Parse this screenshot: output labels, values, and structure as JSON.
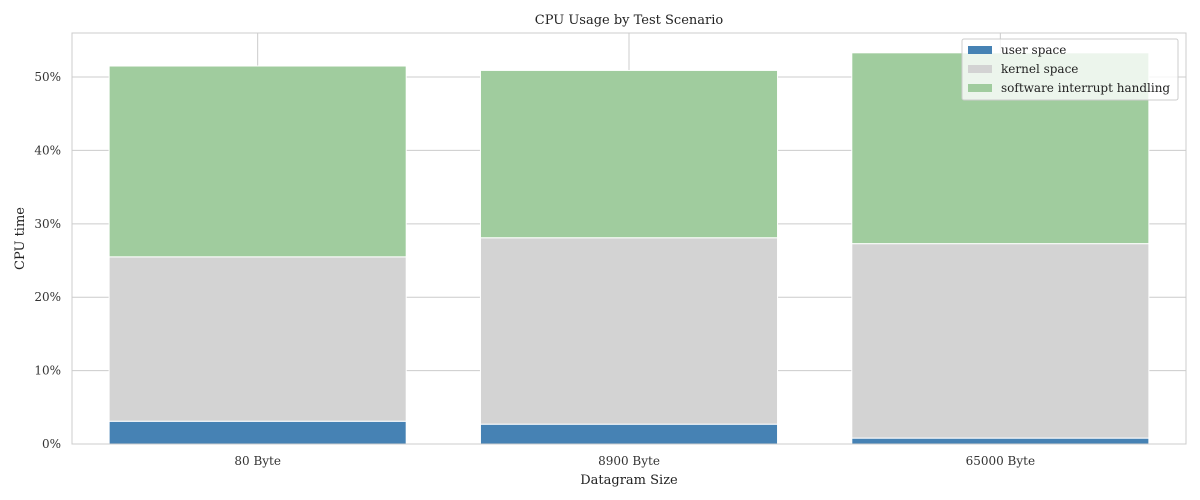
{
  "chart_data": {
    "type": "bar",
    "stacked": true,
    "title": "CPU Usage by Test Scenario",
    "xlabel": "Datagram Size",
    "ylabel": "CPU time",
    "categories": [
      "80 Byte",
      "8900 Byte",
      "65000 Byte"
    ],
    "series": [
      {
        "name": "user space",
        "values": [
          3.1,
          2.7,
          0.8
        ],
        "color": "#4682b4"
      },
      {
        "name": "kernel space",
        "values": [
          22.4,
          25.4,
          26.5
        ],
        "color": "#d3d3d3"
      },
      {
        "name": "software interrupt handling",
        "values": [
          26.0,
          22.8,
          26.0
        ],
        "color": "#a0cc9e"
      }
    ],
    "ylim": [
      0,
      56
    ],
    "yticks": [
      0,
      10,
      20,
      30,
      40,
      50
    ],
    "ytick_labels": [
      "0%",
      "10%",
      "20%",
      "30%",
      "40%",
      "50%"
    ],
    "grid": true,
    "legend_position": "top-right"
  }
}
